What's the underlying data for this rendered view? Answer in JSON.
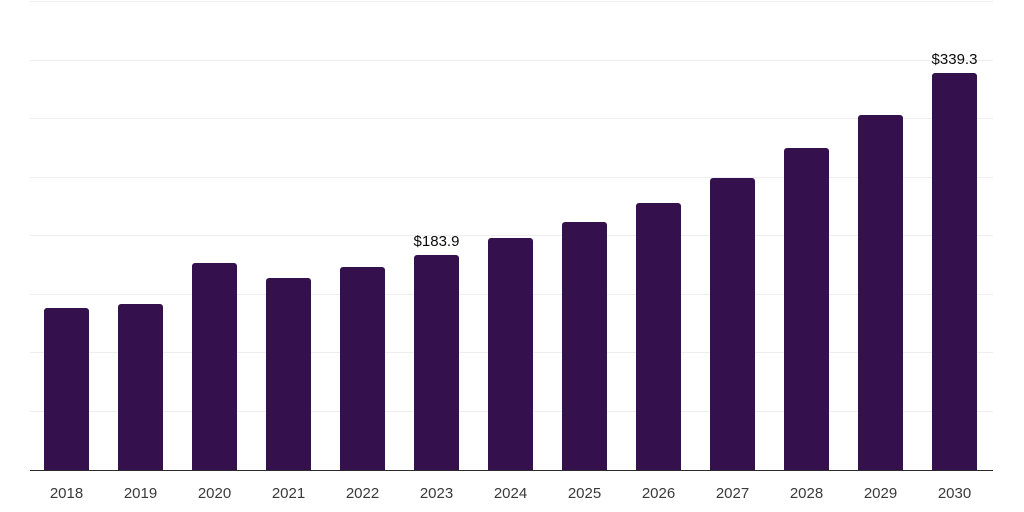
{
  "chart": {
    "bar_color": "#34114d",
    "gridline_color": "#eeeeee",
    "axis_line_color": "#2b2b2b",
    "tick_label_color": "#3a3a3a",
    "data_label_color": "#0a0a0a",
    "background_color": "#ffffff"
  },
  "chart_data": {
    "type": "bar",
    "title": "",
    "xlabel": "",
    "ylabel": "",
    "categories": [
      "2018",
      "2019",
      "2020",
      "2021",
      "2022",
      "2023",
      "2024",
      "2025",
      "2026",
      "2027",
      "2028",
      "2029",
      "2030"
    ],
    "values": [
      138.5,
      141.9,
      176.9,
      164.1,
      173.5,
      183.9,
      197.9,
      211.6,
      228.2,
      250.0,
      275.5,
      303.5,
      339.3
    ],
    "data_labels": {
      "2023": "$183.9",
      "2030": "$339.3"
    },
    "ylim": [
      0,
      400
    ],
    "gridline_step": 50,
    "grid": true,
    "y_tick_labels_visible": false,
    "legend": false
  }
}
